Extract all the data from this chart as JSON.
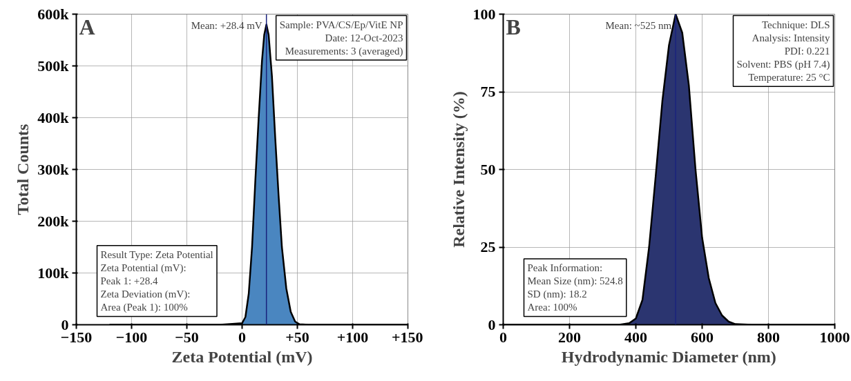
{
  "chart_data": [
    {
      "type": "area",
      "title": "A",
      "xlabel": "Zeta Potential (mV)",
      "ylabel": "Total Counts",
      "x": [
        -120,
        -20,
        0,
        3,
        6,
        9,
        12,
        15,
        18,
        20,
        22,
        24,
        27,
        30,
        33,
        36,
        40,
        44,
        48,
        52,
        60,
        150
      ],
      "series": [
        {
          "color": "#4a86c0",
          "values": [
            0,
            0,
            3000,
            15000,
            60000,
            150000,
            280000,
            400000,
            510000,
            560000,
            580000,
            560000,
            480000,
            360000,
            250000,
            150000,
            70000,
            25000,
            6000,
            1000,
            0,
            0
          ]
        }
      ],
      "xlim": [
        -150,
        150
      ],
      "xticks": [
        {
          "value": -150,
          "label": "−150"
        },
        {
          "value": -100,
          "label": "−100"
        },
        {
          "value": -50,
          "label": "−50"
        },
        0,
        {
          "value": 50,
          "label": "+50"
        },
        {
          "value": 100,
          "label": "+100"
        },
        {
          "value": 150,
          "label": "+150"
        }
      ],
      "ylim": [
        0,
        600000
      ],
      "yticks": [
        {
          "value": 0,
          "label": "0"
        },
        {
          "value": 100000,
          "label": "100k"
        },
        {
          "value": 200000,
          "label": "200k"
        },
        {
          "value": 300000,
          "label": "300k"
        },
        {
          "value": 400000,
          "label": "400k"
        },
        {
          "value": 500000,
          "label": "500k"
        },
        {
          "value": 600000,
          "label": "600k"
        }
      ],
      "grid": true,
      "ref_lines": [
        {
          "axis": "x",
          "value": 22,
          "label": "Mean: +28.4 mV",
          "color": "#1a237e"
        }
      ],
      "annotations": [
        "Sample: PVA/CS/Ep/VitE NP\nDate: 12-Oct-2023\nMeasurements: 3 (averaged)",
        "Result Type: Zeta Potential\nZeta Potential (mV):\nPeak 1: +28.4\nZeta Deviation (mV):\nArea (Peak 1): 100%"
      ]
    },
    {
      "type": "area",
      "title": "B",
      "xlabel": "Hydrodynamic Diameter (nm)",
      "ylabel": "Relative Intensity (%)",
      "x": [
        0,
        350,
        380,
        400,
        420,
        440,
        460,
        480,
        500,
        520,
        540,
        560,
        580,
        600,
        620,
        640,
        660,
        680,
        700,
        750,
        1000
      ],
      "series": [
        {
          "color": "#2b3570",
          "values": [
            0,
            0,
            0.5,
            2,
            8,
            25,
            48,
            72,
            90,
            100,
            94,
            77,
            50,
            28,
            15,
            7,
            3,
            1,
            0.2,
            0,
            0
          ]
        }
      ],
      "xlim": [
        0,
        1000
      ],
      "xticks": [
        0,
        200,
        400,
        600,
        800,
        1000
      ],
      "ylim": [
        0,
        100
      ],
      "yticks": [
        0,
        25,
        50,
        75,
        100
      ],
      "grid": true,
      "ref_lines": [
        {
          "axis": "x",
          "value": 520,
          "label": "Mean: ~525 nm",
          "color": "#1a237e"
        }
      ],
      "annotations": [
        "Technique: DLS\nAnalysis: Intensity\nPDI: 0.221\nSolvent: PBS (pH 7.4)\nTemperature: 25 °C",
        "Peak Information:\nMean Size (nm): 524.8\nSD (nm): 18.2\nArea: 100%"
      ]
    }
  ]
}
